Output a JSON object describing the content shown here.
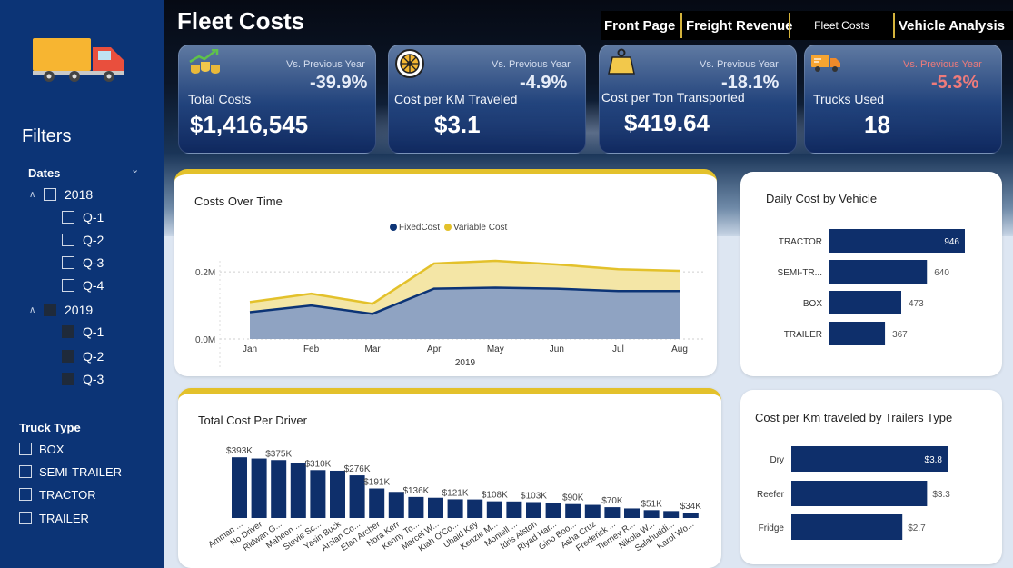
{
  "sidebar": {
    "filters_title": "Filters",
    "dates_label": "Dates",
    "dates_tree": [
      {
        "label": "2018",
        "level": 0,
        "filled": false
      },
      {
        "label": "Q-1",
        "level": 1,
        "filled": false
      },
      {
        "label": "Q-2",
        "level": 1,
        "filled": false
      },
      {
        "label": "Q-3",
        "level": 1,
        "filled": false
      },
      {
        "label": "Q-4",
        "level": 1,
        "filled": false
      },
      {
        "label": "2019",
        "level": 0,
        "filled": true
      },
      {
        "label": "Q-1",
        "level": 1,
        "filled": true
      },
      {
        "label": "Q-2",
        "level": 1,
        "filled": true
      },
      {
        "label": "Q-3",
        "level": 1,
        "filled": true
      }
    ],
    "truck_type_label": "Truck Type",
    "truck_types": [
      "BOX",
      "SEMI-TRAILER",
      "TRACTOR",
      "TRAILER"
    ]
  },
  "header": {
    "title": "Fleet Costs",
    "nav": [
      "Front Page",
      "Freight Revenue",
      "Fleet Costs",
      "Vehicle Analysis"
    ]
  },
  "kpis": [
    {
      "label": "Total Costs",
      "value": "$1,416,545",
      "vs_label": "Vs. Previous Year",
      "change": "-39.9%",
      "icon": "coins-growth-icon",
      "change_color": "#e8eef9"
    },
    {
      "label": "Cost per KM Traveled",
      "value": "$3.1",
      "vs_label": "Vs. Previous Year",
      "change": "-4.9%",
      "icon": "wheel-icon",
      "change_color": "#e8eef9"
    },
    {
      "label": "Cost per Ton Transported",
      "value": "$419.64",
      "vs_label": "Vs. Previous Year",
      "change": "-18.1%",
      "icon": "weight-icon",
      "change_color": "#e8eef9"
    },
    {
      "label": "Trucks Used",
      "value": "18",
      "vs_label": "Vs. Previous Year",
      "change": "-5.3%",
      "icon": "delivery-truck-icon",
      "change_color": "#ef7b7b"
    }
  ],
  "colors": {
    "navy": "#0c3476",
    "bar": "#0e2f6b",
    "gold": "#e3c12b",
    "fixed_area": "#8fa3c2",
    "variable_area": "#f4e6a6"
  },
  "chart_data": [
    {
      "type": "area",
      "title": "Costs Over Time",
      "xlabel": "2019",
      "categories": [
        "Jan",
        "Feb",
        "Mar",
        "Apr",
        "May",
        "Jun",
        "Jul",
        "Aug"
      ],
      "series": [
        {
          "name": "FixedCost",
          "values": [
            0.08,
            0.1,
            0.075,
            0.15,
            0.153,
            0.15,
            0.143,
            0.143
          ]
        },
        {
          "name": "Variable Cost",
          "values": [
            0.03,
            0.035,
            0.03,
            0.075,
            0.08,
            0.072,
            0.065,
            0.06
          ]
        }
      ],
      "ytick_labels": [
        "0.0M",
        "0.2M"
      ],
      "yticks": [
        0,
        0.2
      ],
      "ylim": [
        0,
        0.26
      ],
      "legend": "top-center"
    },
    {
      "type": "bar",
      "orientation": "horizontal",
      "title": "Daily Cost by Vehicle",
      "categories": [
        "TRACTOR",
        "SEMI-TR...",
        "BOX",
        "TRAILER"
      ],
      "values": [
        946,
        640,
        473,
        367
      ],
      "labels": [
        "946",
        "640",
        "473",
        "367"
      ],
      "xlim": [
        0,
        1000
      ]
    },
    {
      "type": "bar",
      "title": "Total Cost Per Driver",
      "categories": [
        "Amman ...",
        "No Driver",
        "Ridwan G...",
        "Maheen ...",
        "Stevie Sc...",
        "Yasin Buck",
        "Arslan Co...",
        "Efan Archer",
        "Nora Kerr",
        "Kenny To...",
        "Marcel W...",
        "Kiah O'Co...",
        "Ubaid Key",
        "Kenzie M...",
        "Montell ...",
        "Idris Alston",
        "Riyad Har...",
        "Gino Boo...",
        "Asha Cruz",
        "Frederick ...",
        "Tierney R...",
        "Nikola W...",
        "Salahuddi...",
        "Karol Wo..."
      ],
      "values": [
        393,
        385,
        375,
        356,
        310,
        306,
        276,
        191,
        169,
        136,
        131,
        121,
        120,
        108,
        107,
        103,
        100,
        90,
        85,
        70,
        62,
        51,
        45,
        34
      ],
      "labels": [
        "$393K",
        "",
        "$375K",
        "",
        "$310K",
        "",
        "$276K",
        "$191K",
        "",
        "$136K",
        "",
        "$121K",
        "",
        "$108K",
        "",
        "$103K",
        "",
        "$90K",
        "",
        "$70K",
        "",
        "$51K",
        "",
        "$34K"
      ],
      "ylim": [
        0,
        400
      ]
    },
    {
      "type": "bar",
      "orientation": "horizontal",
      "title": "Cost per Km traveled by Trailers Type",
      "categories": [
        "Dry",
        "Reefer",
        "Fridge"
      ],
      "values": [
        3.8,
        3.3,
        2.7
      ],
      "labels": [
        "$3.8",
        "$3.3",
        "$2.7"
      ],
      "xlim": [
        0,
        4
      ]
    }
  ]
}
